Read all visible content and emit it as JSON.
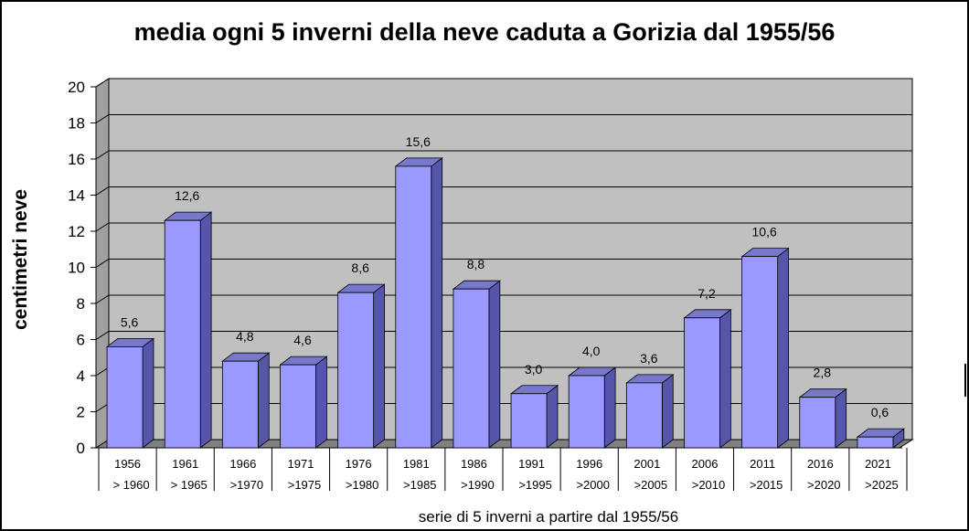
{
  "chart_data": {
    "type": "bar",
    "title": "media ogni 5 inverni della neve caduta a Gorizia dal 1955/56",
    "ylabel": "centimetri neve",
    "xlabel": "serie di 5 inverni a partire dal 1955/56",
    "ylim": [
      0,
      20
    ],
    "yticks": [
      "0",
      "2",
      "4",
      "6",
      "8",
      "10",
      "12",
      "14",
      "16",
      "18",
      "20"
    ],
    "grid": true,
    "categories": [
      {
        "start": "1956",
        "end": "> 1960"
      },
      {
        "start": "1961",
        "end": "> 1965"
      },
      {
        "start": "1966",
        "end": ">1970"
      },
      {
        "start": "1971",
        "end": ">1975"
      },
      {
        "start": "1976",
        "end": ">1980"
      },
      {
        "start": "1981",
        "end": ">1985"
      },
      {
        "start": "1986",
        "end": ">1990"
      },
      {
        "start": "1991",
        "end": ">1995"
      },
      {
        "start": "1996",
        "end": ">2000"
      },
      {
        "start": "2001",
        "end": ">2005"
      },
      {
        "start": "2006",
        "end": ">2010"
      },
      {
        "start": "2011",
        "end": ">2015"
      },
      {
        "start": "2016",
        "end": ">2020"
      },
      {
        "start": "2021",
        "end": ">2025"
      }
    ],
    "values": [
      5.6,
      12.6,
      4.8,
      4.6,
      8.6,
      15.6,
      8.8,
      3.0,
      4.0,
      3.6,
      7.2,
      10.6,
      2.8,
      0.6
    ],
    "value_labels": [
      "5,6",
      "12,6",
      "4,8",
      "4,6",
      "8,6",
      "15,6",
      "8,8",
      "3,0",
      "4,0",
      "3,6",
      "7,2",
      "10,6",
      "2,8",
      "0,6"
    ],
    "colors": {
      "bar_front": "#9999ff",
      "bar_side": "#5555aa",
      "bar_top": "#7777cc",
      "plot_back": "#c0c0c0",
      "plot_floor": "#808080",
      "plot_wall": "#a0a0a0"
    }
  }
}
